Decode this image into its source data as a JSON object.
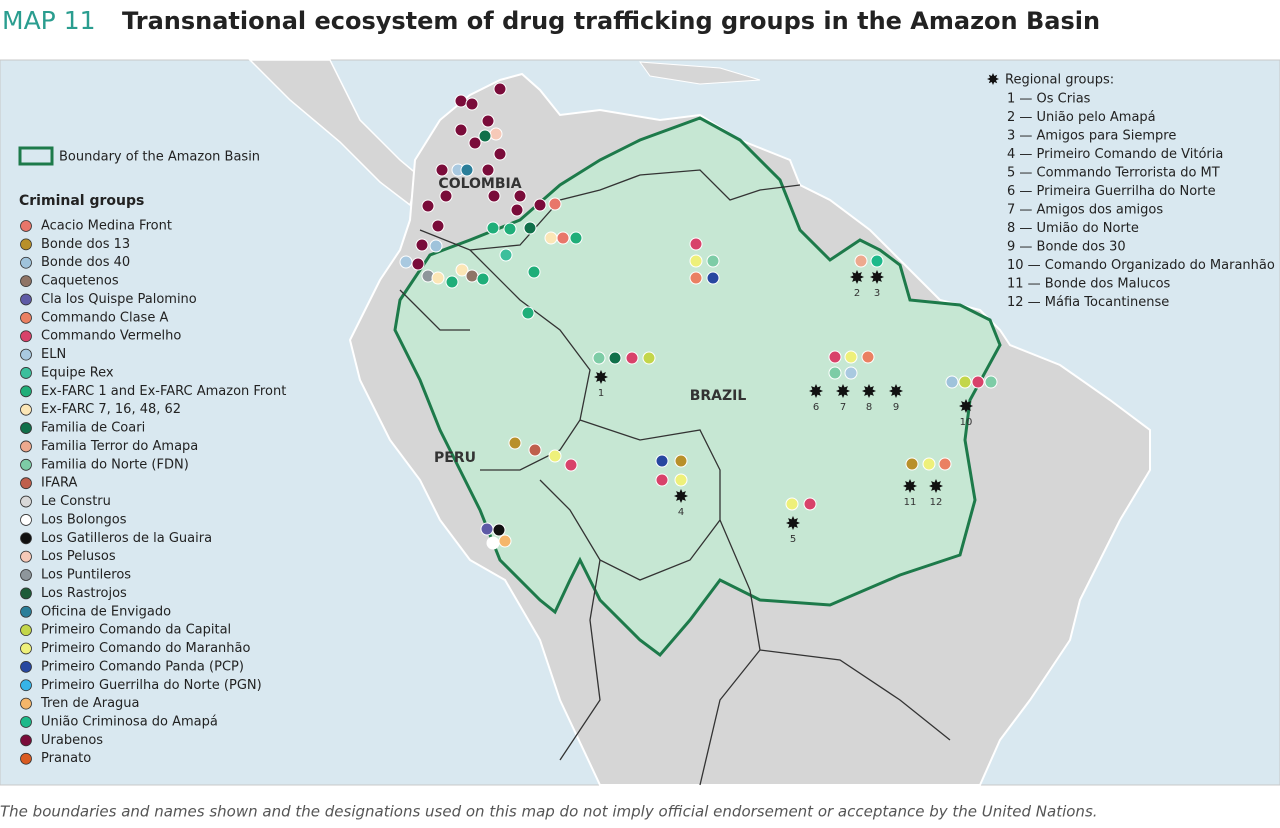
{
  "header": {
    "label": "MAP 11",
    "title": "Transnational ecosystem of drug trafficking groups in the Amazon Basin"
  },
  "legend": {
    "boundary": "Boundary of the Amazon Basin",
    "groups_title": "Criminal groups",
    "groups": [
      {
        "name": "Acacio Medina Front",
        "color": "#e8766a"
      },
      {
        "name": "Bonde dos 13",
        "color": "#b8902a"
      },
      {
        "name": "Bonde dos 40",
        "color": "#9fc3db"
      },
      {
        "name": "Caquetenos",
        "color": "#8f7466"
      },
      {
        "name": "Cla los Quispe Palomino",
        "color": "#5e5aa6"
      },
      {
        "name": "Commando Clase A",
        "color": "#ea8062"
      },
      {
        "name": "Commando Vermelho",
        "color": "#d8426a"
      },
      {
        "name": "ELN",
        "color": "#a9c9e0"
      },
      {
        "name": "Equipe Rex",
        "color": "#3cbf9c"
      },
      {
        "name": "Ex-FARC 1 and Ex-FARC Amazon Front",
        "color": "#1fae79"
      },
      {
        "name": "Ex-FARC 7, 16, 48, 62",
        "color": "#fbe6b6"
      },
      {
        "name": "Familia de Coari",
        "color": "#10704a"
      },
      {
        "name": "Familia Terror do Amapa",
        "color": "#eda98e"
      },
      {
        "name": "Familia do Norte (FDN)",
        "color": "#7dcca6"
      },
      {
        "name": "IFARA",
        "color": "#bf5f4c"
      },
      {
        "name": "Le Constru",
        "color": "#d8d8d8"
      },
      {
        "name": "Los Bolongos",
        "color": "#ffffff"
      },
      {
        "name": "Los Gatilleros de la Guaira",
        "color": "#111111"
      },
      {
        "name": "Los Pelusos",
        "color": "#f6c9b8"
      },
      {
        "name": "Los Puntileros",
        "color": "#8e969b"
      },
      {
        "name": "Los Rastrojos",
        "color": "#1e5b38"
      },
      {
        "name": "Oficina de Envigado",
        "color": "#2a7e99"
      },
      {
        "name": "Primeiro Comando da Capital",
        "color": "#c3d64a"
      },
      {
        "name": "Primeiro Comando do Maranhão",
        "color": "#eef07a"
      },
      {
        "name": "Primeiro Comando Panda (PCP)",
        "color": "#2747a0"
      },
      {
        "name": "Primeiro Guerrilha do Norte (PGN)",
        "color": "#36b4e8"
      },
      {
        "name": "Tren de Aragua",
        "color": "#f5b66a"
      },
      {
        "name": "União Criminosa do Amapá",
        "color": "#1db98a"
      },
      {
        "name": "Urabenos",
        "color": "#7a0c3a"
      },
      {
        "name": "Pranato",
        "color": "#d95b22"
      }
    ]
  },
  "regional": {
    "title": "Regional groups:",
    "items": [
      "1 — Os Crias",
      "2 — União pelo Amapá",
      "3 — Amigos para Siempre",
      "4 — Primeiro Comando de Vitória",
      "5 — Commando Terrorista do MT",
      "6 — Primeira Guerrilha do Norte",
      "7 — Amigos dos amigos",
      "8 — Umião do Norte",
      "9 — Bonde dos 30",
      "10 — Comando Organizado do Maranhão",
      "11 — Bonde dos Malucos",
      "12 — Máfia Tocantinense"
    ]
  },
  "labels": {
    "countries": [
      "COLOMBIA",
      "BRAZIL",
      "PERU"
    ],
    "markers": [
      "1",
      "2",
      "3",
      "4",
      "5",
      "6",
      "7",
      "8",
      "9",
      "10",
      "11",
      "12"
    ]
  },
  "footnote": "The boundaries and names shown and the designations used on this map do not imply official endorsement or acceptance by the United Nations."
}
